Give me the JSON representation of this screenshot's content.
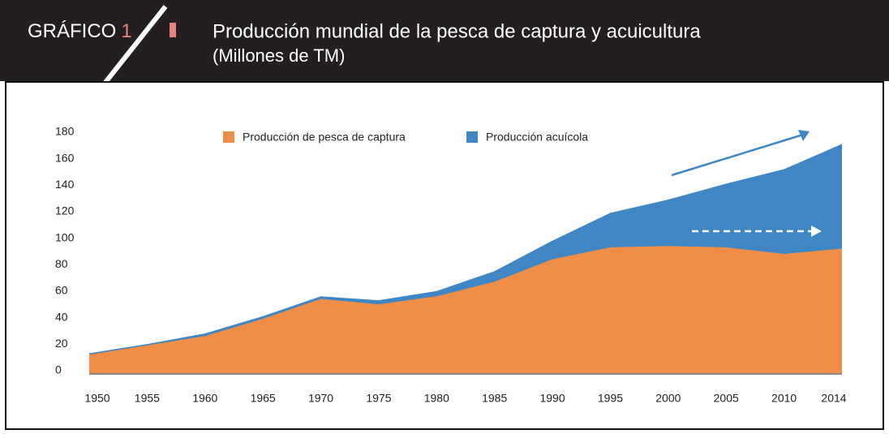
{
  "header": {
    "label": "GRÁFICO",
    "number": "1"
  },
  "chart_data": {
    "type": "stacked_area",
    "title": "Producción mundial de la pesca de captura y acuicultura",
    "subtitle": "(Millones de TM)",
    "categories": [
      "1950",
      "1955",
      "1960",
      "1965",
      "1970",
      "1975",
      "1980",
      "1985",
      "1990",
      "1995",
      "2000",
      "2005",
      "2010",
      "2014"
    ],
    "series": [
      {
        "name": "Producción de pesca de captura",
        "color": "#f08e47",
        "values": [
          14,
          21,
          28,
          41,
          56,
          52,
          58,
          69,
          86,
          95,
          96,
          95,
          90,
          94
        ]
      },
      {
        "name": "Producción acuícola",
        "color": "#3f87c4",
        "values": [
          1,
          1,
          2,
          2,
          2,
          3,
          4,
          8,
          14,
          26,
          35,
          48,
          64,
          79
        ]
      }
    ],
    "ylim": [
      0,
      180
    ],
    "yticks": [
      0,
      20,
      40,
      60,
      80,
      100,
      120,
      140,
      160,
      180
    ],
    "grid": false
  }
}
